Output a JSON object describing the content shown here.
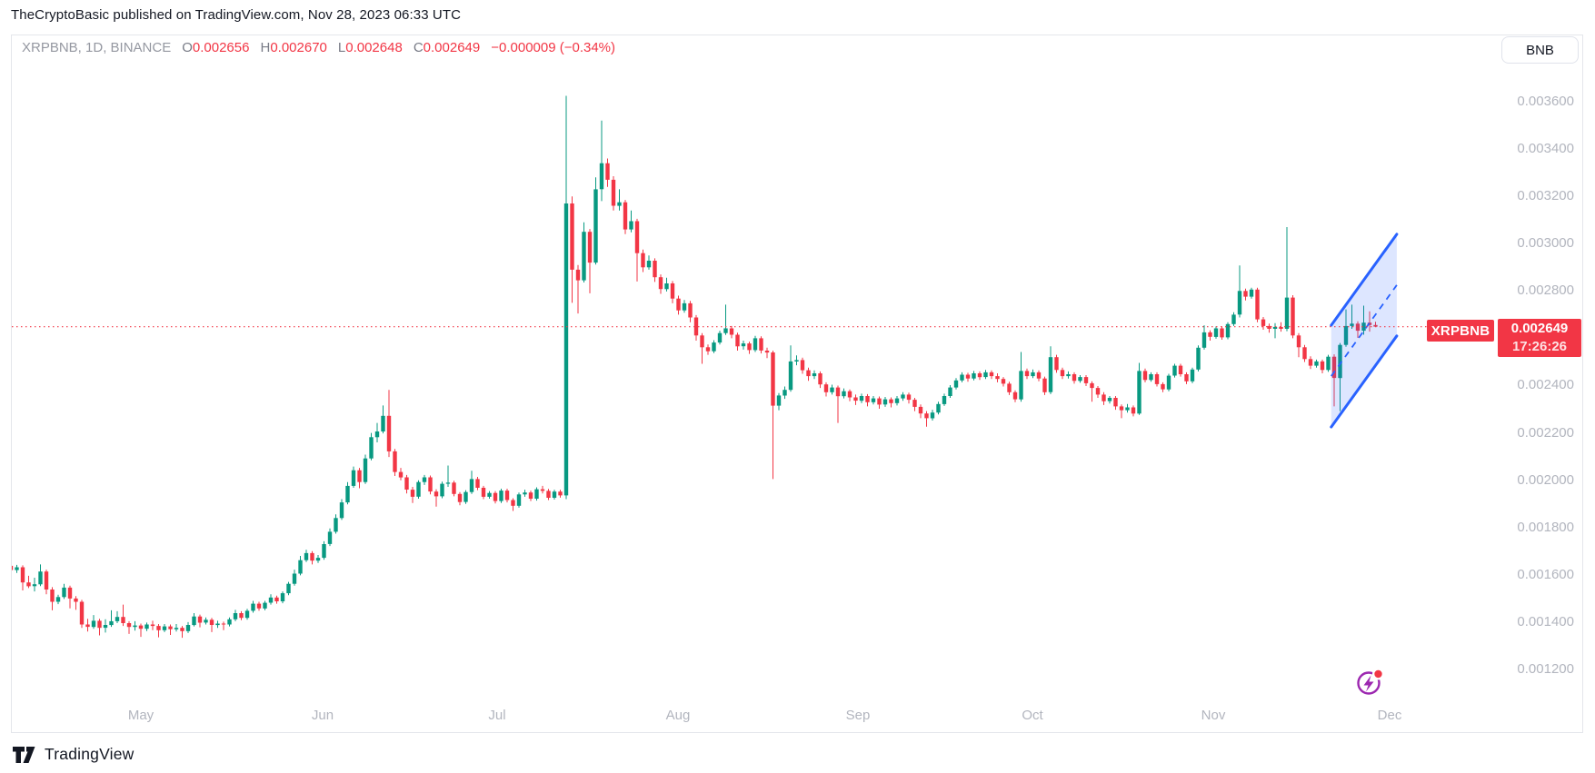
{
  "attribution": "TheCryptoBasic published on TradingView.com, Nov 28, 2023 06:33 UTC",
  "legend": {
    "symbol": "XRPBNB, 1D, BINANCE",
    "o_label": "O",
    "o": "0.002656",
    "h_label": "H",
    "h": "0.002670",
    "l_label": "L",
    "l": "0.002648",
    "c_label": "C",
    "c": "0.002649",
    "change": "−0.000009 (−0.34%)"
  },
  "currency_button": "BNB",
  "price_label": {
    "symbol": "XRPBNB",
    "price": "0.002649",
    "countdown": "17:26:26"
  },
  "footer": {
    "logo_text": "TradingView"
  },
  "colors": {
    "up": "#089981",
    "down": "#f23645",
    "channel_blue": "#2962ff",
    "channel_fill": "rgba(41,98,255,0.16)",
    "axis_text": "#b2b5be",
    "label_bg": "#f23645",
    "icon_purple": "#9c27b0",
    "dot_red": "#f23645"
  },
  "chart_data": {
    "type": "candlestick",
    "title": "XRPBNB, 1D, BINANCE",
    "x_axis": "time (daily candles, Apr–Nov 2023, projection into Dec)",
    "y_axis": "price (BNB)",
    "ylim_millionths": [
      1120,
      3700
    ],
    "grid": false,
    "legend_position": "top-left",
    "y_ticks_millionths": [
      3600,
      3400,
      3200,
      3000,
      2800,
      2600,
      2400,
      2200,
      2000,
      1800,
      1600,
      1400,
      1200
    ],
    "x_ticks": [
      {
        "label": "May",
        "i": 22.0
      },
      {
        "label": "Jun",
        "i": 52.8
      },
      {
        "label": "Jul",
        "i": 82.3
      },
      {
        "label": "Aug",
        "i": 112.9
      },
      {
        "label": "Sep",
        "i": 143.4
      },
      {
        "label": "Oct",
        "i": 172.9
      },
      {
        "label": "Nov",
        "i": 203.5
      },
      {
        "label": "Dec",
        "i": 233.4
      }
    ],
    "last_price_millionths": 2649,
    "current_ohlc": {
      "open": 0.002656,
      "high": 0.00267,
      "low": 0.002648,
      "close": 0.002649,
      "change": -9e-06,
      "change_pct": -0.34
    },
    "channel": {
      "description": "ascending parallel channel with dashed midline, drawn over late-Nov candles projecting to Dec",
      "i_start": 223.5,
      "i_end": 234.6,
      "upper_start": 2655,
      "upper_end": 3040,
      "lower_start": 2225,
      "lower_end": 2610
    },
    "candles_ohlc_millionths": [
      [
        1638,
        1650,
        1612,
        1620
      ],
      [
        1620,
        1642,
        1608,
        1632
      ],
      [
        1632,
        1640,
        1534,
        1568
      ],
      [
        1568,
        1596,
        1544,
        1552
      ],
      [
        1552,
        1588,
        1530,
        1560
      ],
      [
        1560,
        1644,
        1552,
        1614
      ],
      [
        1614,
        1622,
        1518,
        1538
      ],
      [
        1538,
        1548,
        1450,
        1486
      ],
      [
        1486,
        1516,
        1476,
        1506
      ],
      [
        1506,
        1562,
        1498,
        1546
      ],
      [
        1546,
        1554,
        1458,
        1500
      ],
      [
        1500,
        1510,
        1452,
        1486
      ],
      [
        1486,
        1494,
        1376,
        1390
      ],
      [
        1390,
        1414,
        1360,
        1380
      ],
      [
        1380,
        1430,
        1372,
        1406
      ],
      [
        1406,
        1414,
        1344,
        1376
      ],
      [
        1376,
        1412,
        1356,
        1388
      ],
      [
        1388,
        1450,
        1380,
        1404
      ],
      [
        1404,
        1446,
        1396,
        1422
      ],
      [
        1422,
        1474,
        1384,
        1396
      ],
      [
        1396,
        1404,
        1350,
        1380
      ],
      [
        1380,
        1404,
        1364,
        1386
      ],
      [
        1386,
        1394,
        1338,
        1372
      ],
      [
        1372,
        1398,
        1362,
        1390
      ],
      [
        1390,
        1406,
        1366,
        1384
      ],
      [
        1384,
        1392,
        1336,
        1366
      ],
      [
        1366,
        1392,
        1358,
        1382
      ],
      [
        1382,
        1390,
        1346,
        1370
      ],
      [
        1370,
        1392,
        1360,
        1376
      ],
      [
        1376,
        1384,
        1334,
        1362
      ],
      [
        1362,
        1400,
        1354,
        1388
      ],
      [
        1388,
        1438,
        1382,
        1424
      ],
      [
        1424,
        1432,
        1378,
        1398
      ],
      [
        1398,
        1420,
        1390,
        1410
      ],
      [
        1410,
        1418,
        1358,
        1388
      ],
      [
        1388,
        1406,
        1376,
        1394
      ],
      [
        1394,
        1402,
        1366,
        1390
      ],
      [
        1390,
        1420,
        1382,
        1412
      ],
      [
        1412,
        1452,
        1404,
        1438
      ],
      [
        1438,
        1446,
        1408,
        1418
      ],
      [
        1418,
        1456,
        1410,
        1448
      ],
      [
        1448,
        1490,
        1440,
        1478
      ],
      [
        1478,
        1486,
        1448,
        1458
      ],
      [
        1458,
        1490,
        1450,
        1482
      ],
      [
        1482,
        1518,
        1474,
        1504
      ],
      [
        1504,
        1512,
        1478,
        1488
      ],
      [
        1488,
        1530,
        1480,
        1522
      ],
      [
        1522,
        1570,
        1514,
        1562
      ],
      [
        1562,
        1622,
        1554,
        1605
      ],
      [
        1605,
        1680,
        1598,
        1662
      ],
      [
        1662,
        1706,
        1654,
        1692
      ],
      [
        1692,
        1700,
        1644,
        1660
      ],
      [
        1660,
        1684,
        1650,
        1672
      ],
      [
        1672,
        1742,
        1664,
        1730
      ],
      [
        1730,
        1796,
        1722,
        1782
      ],
      [
        1782,
        1856,
        1774,
        1840
      ],
      [
        1840,
        1920,
        1832,
        1906
      ],
      [
        1906,
        1992,
        1898,
        1976
      ],
      [
        1976,
        2058,
        1968,
        2042
      ],
      [
        2042,
        2052,
        1966,
        1992
      ],
      [
        1992,
        2108,
        1984,
        2092
      ],
      [
        2092,
        2200,
        2084,
        2182
      ],
      [
        2182,
        2242,
        2160,
        2206
      ],
      [
        2206,
        2316,
        2198,
        2272
      ],
      [
        2272,
        2382,
        2098,
        2122
      ],
      [
        2122,
        2132,
        2018,
        2035
      ],
      [
        2035,
        2052,
        2000,
        2012
      ],
      [
        2012,
        2022,
        1944,
        1960
      ],
      [
        1960,
        1972,
        1904,
        1930
      ],
      [
        1930,
        2000,
        1922,
        1992
      ],
      [
        1992,
        2022,
        1980,
        2012
      ],
      [
        2012,
        2020,
        1940,
        1952
      ],
      [
        1952,
        1962,
        1888,
        1932
      ],
      [
        1932,
        1994,
        1924,
        1985
      ],
      [
        1985,
        2062,
        1972,
        1990
      ],
      [
        1990,
        1998,
        1932,
        1942
      ],
      [
        1942,
        1950,
        1894,
        1908
      ],
      [
        1908,
        1958,
        1900,
        1950
      ],
      [
        1950,
        2040,
        1942,
        2005
      ],
      [
        2005,
        2014,
        1958,
        1968
      ],
      [
        1968,
        1976,
        1920,
        1930
      ],
      [
        1930,
        1954,
        1922,
        1946
      ],
      [
        1946,
        1954,
        1902,
        1912
      ],
      [
        1912,
        1964,
        1904,
        1956
      ],
      [
        1956,
        1964,
        1906,
        1916
      ],
      [
        1916,
        1924,
        1870,
        1892
      ],
      [
        1892,
        1948,
        1884,
        1940
      ],
      [
        1940,
        1960,
        1930,
        1948
      ],
      [
        1948,
        1956,
        1912,
        1922
      ],
      [
        1922,
        1970,
        1914,
        1962
      ],
      [
        1962,
        1976,
        1944,
        1955
      ],
      [
        1955,
        1963,
        1916,
        1926
      ],
      [
        1926,
        1960,
        1918,
        1952
      ],
      [
        1952,
        1960,
        1926,
        1936
      ],
      [
        1936,
        3625,
        1920,
        3170
      ],
      [
        3170,
        3200,
        2750,
        2890
      ],
      [
        2890,
        2910,
        2705,
        2845
      ],
      [
        2845,
        3090,
        2836,
        3050
      ],
      [
        3050,
        3062,
        2790,
        2920
      ],
      [
        2920,
        3280,
        2912,
        3230
      ],
      [
        3230,
        3520,
        3180,
        3340
      ],
      [
        3340,
        3360,
        3240,
        3270
      ],
      [
        3270,
        3285,
        3140,
        3160
      ],
      [
        3160,
        3230,
        3140,
        3175
      ],
      [
        3175,
        3185,
        3040,
        3060
      ],
      [
        3060,
        3140,
        3048,
        3095
      ],
      [
        3095,
        3105,
        2840,
        2960
      ],
      [
        2960,
        2975,
        2880,
        2900
      ],
      [
        2900,
        2950,
        2890,
        2928
      ],
      [
        2928,
        2938,
        2838,
        2858
      ],
      [
        2858,
        2870,
        2788,
        2808
      ],
      [
        2808,
        2856,
        2798,
        2832
      ],
      [
        2832,
        2842,
        2748,
        2768
      ],
      [
        2768,
        2780,
        2700,
        2718
      ],
      [
        2718,
        2762,
        2708,
        2748
      ],
      [
        2748,
        2758,
        2668,
        2688
      ],
      [
        2688,
        2698,
        2590,
        2612
      ],
      [
        2612,
        2622,
        2492,
        2562
      ],
      [
        2562,
        2574,
        2530,
        2545
      ],
      [
        2545,
        2592,
        2537,
        2582
      ],
      [
        2582,
        2632,
        2574,
        2622
      ],
      [
        2622,
        2742,
        2614,
        2642
      ],
      [
        2642,
        2652,
        2600,
        2615
      ],
      [
        2615,
        2624,
        2548,
        2566
      ],
      [
        2566,
        2590,
        2552,
        2578
      ],
      [
        2578,
        2586,
        2534,
        2550
      ],
      [
        2550,
        2610,
        2542,
        2600
      ],
      [
        2600,
        2608,
        2536,
        2548
      ],
      [
        2548,
        2560,
        2516,
        2540
      ],
      [
        2540,
        2548,
        2005,
        2315
      ],
      [
        2315,
        2368,
        2296,
        2358
      ],
      [
        2358,
        2396,
        2344,
        2382
      ],
      [
        2382,
        2570,
        2374,
        2502
      ],
      [
        2502,
        2528,
        2486,
        2508
      ],
      [
        2508,
        2518,
        2450,
        2465
      ],
      [
        2465,
        2476,
        2420,
        2440
      ],
      [
        2440,
        2464,
        2428,
        2452
      ],
      [
        2452,
        2460,
        2390,
        2405
      ],
      [
        2405,
        2414,
        2354,
        2372
      ],
      [
        2372,
        2404,
        2362,
        2392
      ],
      [
        2392,
        2400,
        2242,
        2355
      ],
      [
        2355,
        2388,
        2346,
        2376
      ],
      [
        2376,
        2384,
        2334,
        2350
      ],
      [
        2350,
        2362,
        2318,
        2336
      ],
      [
        2336,
        2366,
        2326,
        2356
      ],
      [
        2356,
        2364,
        2312,
        2330
      ],
      [
        2330,
        2356,
        2320,
        2346
      ],
      [
        2346,
        2354,
        2302,
        2320
      ],
      [
        2320,
        2352,
        2310,
        2342
      ],
      [
        2342,
        2350,
        2308,
        2326
      ],
      [
        2326,
        2356,
        2316,
        2346
      ],
      [
        2346,
        2372,
        2336,
        2362
      ],
      [
        2362,
        2370,
        2324,
        2340
      ],
      [
        2340,
        2348,
        2292,
        2310
      ],
      [
        2310,
        2320,
        2262,
        2282
      ],
      [
        2282,
        2292,
        2226,
        2262
      ],
      [
        2262,
        2298,
        2252,
        2286
      ],
      [
        2286,
        2332,
        2278,
        2322
      ],
      [
        2322,
        2366,
        2314,
        2356
      ],
      [
        2356,
        2402,
        2348,
        2392
      ],
      [
        2392,
        2432,
        2384,
        2422
      ],
      [
        2422,
        2456,
        2414,
        2446
      ],
      [
        2446,
        2454,
        2416,
        2430
      ],
      [
        2430,
        2462,
        2422,
        2452
      ],
      [
        2452,
        2460,
        2424,
        2436
      ],
      [
        2436,
        2466,
        2428,
        2456
      ],
      [
        2456,
        2464,
        2428,
        2440
      ],
      [
        2440,
        2452,
        2414,
        2428
      ],
      [
        2428,
        2436,
        2396,
        2408
      ],
      [
        2408,
        2416,
        2360,
        2372
      ],
      [
        2372,
        2380,
        2330,
        2342
      ],
      [
        2342,
        2542,
        2332,
        2462
      ],
      [
        2462,
        2472,
        2428,
        2440
      ],
      [
        2440,
        2468,
        2432,
        2456
      ],
      [
        2456,
        2464,
        2418,
        2430
      ],
      [
        2430,
        2438,
        2360,
        2372
      ],
      [
        2372,
        2566,
        2364,
        2520
      ],
      [
        2520,
        2530,
        2454,
        2466
      ],
      [
        2466,
        2476,
        2428,
        2440
      ],
      [
        2440,
        2460,
        2430,
        2448
      ],
      [
        2448,
        2456,
        2408,
        2420
      ],
      [
        2420,
        2444,
        2412,
        2436
      ],
      [
        2436,
        2444,
        2398,
        2410
      ],
      [
        2410,
        2418,
        2332,
        2390
      ],
      [
        2390,
        2398,
        2348,
        2362
      ],
      [
        2362,
        2372,
        2318,
        2334
      ],
      [
        2334,
        2356,
        2324,
        2348
      ],
      [
        2348,
        2356,
        2298,
        2312
      ],
      [
        2312,
        2320,
        2262,
        2296
      ],
      [
        2296,
        2322,
        2286,
        2308
      ],
      [
        2308,
        2316,
        2270,
        2282
      ],
      [
        2282,
        2496,
        2276,
        2462
      ],
      [
        2462,
        2472,
        2414,
        2424
      ],
      [
        2424,
        2456,
        2416,
        2448
      ],
      [
        2448,
        2456,
        2396,
        2406
      ],
      [
        2406,
        2414,
        2372,
        2384
      ],
      [
        2384,
        2450,
        2376,
        2442
      ],
      [
        2442,
        2492,
        2434,
        2484
      ],
      [
        2484,
        2492,
        2438,
        2448
      ],
      [
        2448,
        2456,
        2406,
        2418
      ],
      [
        2418,
        2476,
        2410,
        2468
      ],
      [
        2468,
        2570,
        2460,
        2560
      ],
      [
        2560,
        2655,
        2552,
        2625
      ],
      [
        2625,
        2634,
        2590,
        2606
      ],
      [
        2606,
        2650,
        2598,
        2642
      ],
      [
        2642,
        2650,
        2594,
        2604
      ],
      [
        2604,
        2668,
        2596,
        2660
      ],
      [
        2660,
        2710,
        2652,
        2700
      ],
      [
        2700,
        2908,
        2688,
        2800
      ],
      [
        2800,
        2810,
        2760,
        2776
      ],
      [
        2776,
        2814,
        2768,
        2806
      ],
      [
        2806,
        2814,
        2668,
        2680
      ],
      [
        2680,
        2690,
        2636,
        2652
      ],
      [
        2652,
        2662,
        2624,
        2640
      ],
      [
        2640,
        2664,
        2600,
        2648
      ],
      [
        2648,
        2668,
        2628,
        2640
      ],
      [
        2640,
        3070,
        2630,
        2772
      ],
      [
        2772,
        2782,
        2600,
        2612
      ],
      [
        2612,
        2622,
        2520,
        2562
      ],
      [
        2562,
        2572,
        2500,
        2512
      ],
      [
        2512,
        2524,
        2470,
        2484
      ],
      [
        2484,
        2510,
        2476,
        2502
      ],
      [
        2502,
        2510,
        2452,
        2466
      ],
      [
        2466,
        2530,
        2458,
        2522
      ],
      [
        2522,
        2532,
        2312,
        2432
      ],
      [
        2432,
        2580,
        2292,
        2572
      ],
      [
        2572,
        2722,
        2564,
        2652
      ],
      [
        2652,
        2742,
        2640,
        2662
      ],
      [
        2662,
        2672,
        2602,
        2632
      ],
      [
        2632,
        2738,
        2615,
        2666
      ],
      [
        2666,
        2714,
        2628,
        2656
      ],
      [
        2656,
        2670,
        2648,
        2649
      ]
    ]
  }
}
